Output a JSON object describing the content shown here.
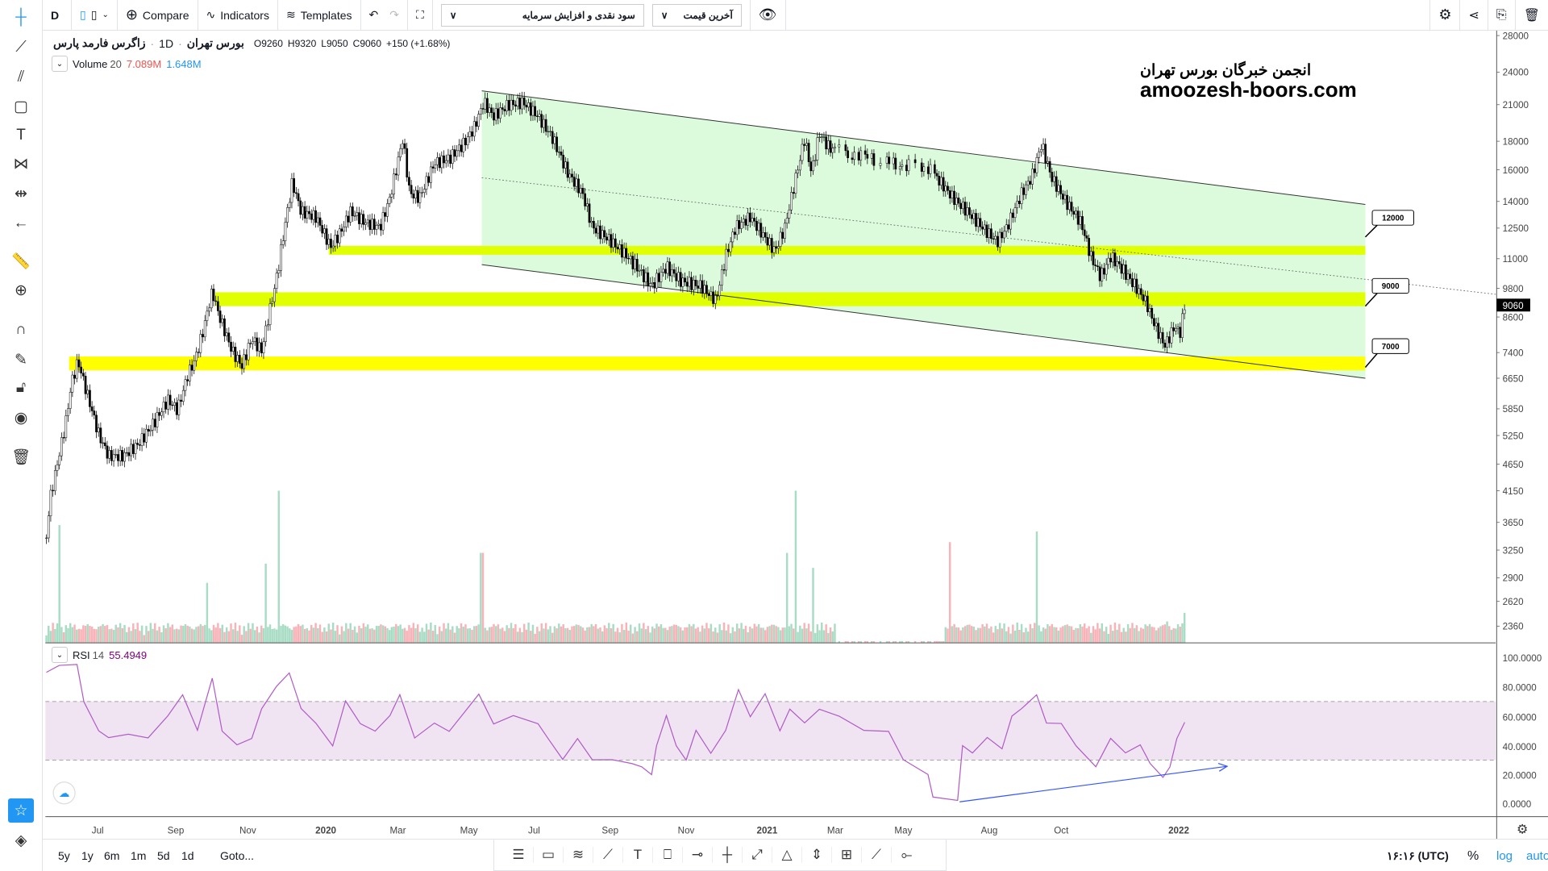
{
  "toolbar": {
    "interval": "D",
    "compare": "Compare",
    "indicators": "Indicators",
    "templates": "Templates",
    "dropdown1": "سود نقدی و افزایش سرمایه",
    "dropdown2": "آخرین قیمت"
  },
  "legend": {
    "symbol": "زاگرس فارمد پارس",
    "interval": "1D",
    "exchange": "بورس تهران",
    "open": "O9260",
    "high": "H9320",
    "low": "L9050",
    "close": "C9060",
    "change": "+150 (+1.68%)"
  },
  "volume_legend": {
    "name": "Volume",
    "period": "20",
    "value1": "7.089M",
    "value2": "1.648M"
  },
  "rsi_legend": {
    "name": "RSI",
    "period": "14",
    "value": "55.4949"
  },
  "watermark": {
    "line1": "انجمن خبرگان بورس تهران",
    "line2": "amoozesh-boors.com"
  },
  "levels": [
    "12000",
    "9000",
    "7000"
  ],
  "bottom": {
    "ranges": [
      "5y",
      "1y",
      "6m",
      "1m",
      "5d",
      "1d"
    ],
    "goto": "Goto...",
    "time": "۱۶:۱۶ (UTC)",
    "percent": "%",
    "log": "log",
    "auto": "auto"
  },
  "colors": {
    "accent": "#2196f3",
    "up_volume": "#a8dcc5",
    "down_volume": "#f7b3b8",
    "channel": "#dcfbdc",
    "level": "#ffff00",
    "rsi": "#9c27b0",
    "rsi_band": "#f0e4f2"
  },
  "chart_data": {
    "type": "candlestick",
    "price_ticks": [
      "28000",
      "24000",
      "21000",
      "18000",
      "16000",
      "14000",
      "12500",
      "11000",
      "9800",
      "8600",
      "7400",
      "6650",
      "5850",
      "5250",
      "4650",
      "4150",
      "3650",
      "3250",
      "2900",
      "2620",
      "2360"
    ],
    "current_price": "9060",
    "rsi_ticks": [
      "100.0000",
      "80.0000",
      "60.0000",
      "40.0000",
      "20.0000",
      "0.0000"
    ],
    "time_ticks": [
      "Jul",
      "Sep",
      "Nov",
      "2020",
      "Mar",
      "May",
      "Jul",
      "Sep",
      "Nov",
      "2021",
      "Mar",
      "May",
      "Aug",
      "Oct",
      "2022"
    ],
    "close_path": [
      [
        0,
        3420
      ],
      [
        3,
        3950
      ],
      [
        13,
        4850
      ],
      [
        21,
        5720
      ],
      [
        25,
        6480
      ],
      [
        32,
        7150
      ],
      [
        43,
        6070
      ],
      [
        53,
        5270
      ],
      [
        63,
        4810
      ],
      [
        78,
        4810
      ],
      [
        93,
        5060
      ],
      [
        108,
        5500
      ],
      [
        123,
        6070
      ],
      [
        133,
        5830
      ],
      [
        143,
        6730
      ],
      [
        150,
        7150
      ],
      [
        158,
        8000
      ],
      [
        168,
        9680
      ],
      [
        175,
        8640
      ],
      [
        188,
        7460
      ],
      [
        198,
        7000
      ],
      [
        208,
        7850
      ],
      [
        218,
        7460
      ],
      [
        225,
        8640
      ],
      [
        235,
        10650
      ],
      [
        243,
        13100
      ],
      [
        249,
        15200
      ],
      [
        258,
        13400
      ],
      [
        273,
        13100
      ],
      [
        288,
        11550
      ],
      [
        298,
        12300
      ],
      [
        308,
        13400
      ],
      [
        323,
        12800
      ],
      [
        338,
        12550
      ],
      [
        348,
        14230
      ],
      [
        361,
        18200
      ],
      [
        368,
        14500
      ],
      [
        378,
        14230
      ],
      [
        393,
        16450
      ],
      [
        408,
        16750
      ],
      [
        423,
        17850
      ],
      [
        433,
        19000
      ],
      [
        443,
        21200
      ],
      [
        453,
        20000
      ],
      [
        468,
        21000
      ],
      [
        483,
        21200
      ],
      [
        498,
        20000
      ],
      [
        513,
        18200
      ],
      [
        528,
        15800
      ],
      [
        543,
        14500
      ],
      [
        553,
        12550
      ],
      [
        568,
        12000
      ],
      [
        583,
        11350
      ],
      [
        598,
        10650
      ],
      [
        613,
        9880
      ],
      [
        628,
        10650
      ],
      [
        643,
        10080
      ],
      [
        663,
        9880
      ],
      [
        678,
        9270
      ],
      [
        688,
        11100
      ],
      [
        698,
        12550
      ],
      [
        713,
        13100
      ],
      [
        728,
        12000
      ],
      [
        738,
        11350
      ],
      [
        748,
        12550
      ],
      [
        758,
        15200
      ],
      [
        768,
        18200
      ],
      [
        775,
        15800
      ],
      [
        783,
        18600
      ],
      [
        793,
        17500
      ],
      [
        833,
        16750
      ],
      [
        893,
        16100
      ],
      [
        898,
        15800
      ],
      [
        918,
        14230
      ],
      [
        933,
        13400
      ],
      [
        948,
        12550
      ],
      [
        963,
        11800
      ],
      [
        973,
        12550
      ],
      [
        988,
        14500
      ],
      [
        998,
        15500
      ],
      [
        1008,
        17800
      ],
      [
        1018,
        15500
      ],
      [
        1033,
        13950
      ],
      [
        1048,
        12800
      ],
      [
        1058,
        11100
      ],
      [
        1068,
        10250
      ],
      [
        1078,
        11100
      ],
      [
        1088,
        10650
      ],
      [
        1103,
        9880
      ],
      [
        1113,
        9270
      ],
      [
        1123,
        8280
      ],
      [
        1133,
        7620
      ],
      [
        1143,
        8280
      ],
      [
        1148,
        8000
      ],
      [
        1153,
        9060
      ]
    ],
    "volume_spikes_M": [
      [
        13,
        5.5
      ],
      [
        163,
        2.8
      ],
      [
        223,
        3.7
      ],
      [
        236,
        7.1
      ],
      [
        441,
        4.2
      ],
      [
        751,
        4.2
      ],
      [
        759,
        7.1
      ],
      [
        776,
        3.5
      ],
      [
        916,
        4.7
      ],
      [
        1003,
        5.2
      ],
      [
        1136,
        1.0
      ],
      [
        1153,
        1.4
      ]
    ],
    "rsi_path": [
      [
        0,
        90
      ],
      [
        13,
        95
      ],
      [
        31,
        95
      ],
      [
        38,
        70
      ],
      [
        53,
        50
      ],
      [
        63,
        45
      ],
      [
        83,
        48
      ],
      [
        103,
        45
      ],
      [
        123,
        60
      ],
      [
        138,
        75
      ],
      [
        153,
        50
      ],
      [
        168,
        86
      ],
      [
        178,
        50
      ],
      [
        193,
        40
      ],
      [
        208,
        45
      ],
      [
        218,
        65
      ],
      [
        233,
        80
      ],
      [
        246,
        90
      ],
      [
        258,
        65
      ],
      [
        273,
        55
      ],
      [
        290,
        40
      ],
      [
        303,
        70
      ],
      [
        318,
        55
      ],
      [
        333,
        50
      ],
      [
        348,
        60
      ],
      [
        358,
        75
      ],
      [
        373,
        45
      ],
      [
        393,
        55
      ],
      [
        408,
        50
      ],
      [
        423,
        62
      ],
      [
        438,
        75
      ],
      [
        453,
        55
      ],
      [
        473,
        60
      ],
      [
        498,
        55
      ],
      [
        508,
        45
      ],
      [
        523,
        30
      ],
      [
        538,
        45
      ],
      [
        553,
        30
      ],
      [
        573,
        30
      ],
      [
        593,
        28
      ],
      [
        603,
        25
      ],
      [
        613,
        20
      ],
      [
        618,
        40
      ],
      [
        628,
        60
      ],
      [
        638,
        40
      ],
      [
        648,
        30
      ],
      [
        658,
        50
      ],
      [
        673,
        35
      ],
      [
        688,
        50
      ],
      [
        701,
        78
      ],
      [
        713,
        60
      ],
      [
        728,
        75
      ],
      [
        743,
        50
      ],
      [
        753,
        65
      ],
      [
        768,
        55
      ],
      [
        783,
        65
      ],
      [
        803,
        60
      ],
      [
        828,
        50
      ],
      [
        853,
        50
      ],
      [
        868,
        30
      ],
      [
        893,
        20
      ],
      [
        898,
        5
      ],
      [
        923,
        2
      ],
      [
        928,
        40
      ],
      [
        938,
        35
      ],
      [
        953,
        45
      ],
      [
        968,
        38
      ],
      [
        978,
        60
      ],
      [
        988,
        65
      ],
      [
        1003,
        75
      ],
      [
        1013,
        55
      ],
      [
        1028,
        55
      ],
      [
        1043,
        40
      ],
      [
        1063,
        25
      ],
      [
        1078,
        45
      ],
      [
        1093,
        35
      ],
      [
        1108,
        40
      ],
      [
        1118,
        28
      ],
      [
        1131,
        18
      ],
      [
        1138,
        25
      ],
      [
        1145,
        45
      ],
      [
        1153,
        55.49
      ]
    ],
    "overbought": 70,
    "oversold": 30
  }
}
